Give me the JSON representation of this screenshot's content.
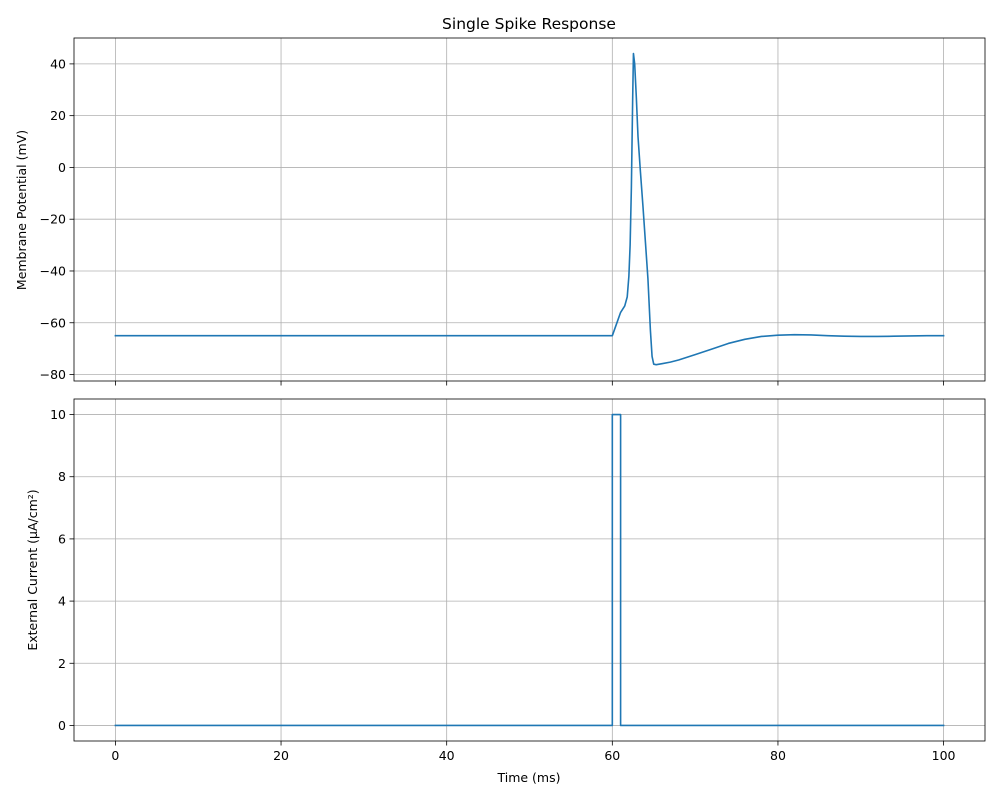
{
  "chart_data": [
    {
      "type": "line",
      "title": "Single Spike Response",
      "xlabel": "",
      "ylabel": "Membrane Potential (mV)",
      "xlim": [
        -5,
        105
      ],
      "ylim": [
        -82.5,
        50
      ],
      "xticks": [
        0,
        20,
        40,
        60,
        80,
        100
      ],
      "yticks": [
        -80,
        -60,
        -40,
        -20,
        0,
        20,
        40
      ],
      "grid": true,
      "line_color": "#1f77b4",
      "series": [
        {
          "x": [
            0,
            10,
            20,
            30,
            40,
            50,
            59,
            60,
            60.5,
            61,
            61.5,
            61.8,
            62,
            62.15,
            62.3,
            62.45,
            62.55,
            62.7,
            62.9,
            63.1,
            63.4,
            63.7,
            64.0,
            64.3,
            64.6,
            64.8,
            65.0,
            65.3,
            66,
            67,
            68,
            70,
            72,
            74,
            76,
            78,
            80,
            82,
            84,
            86,
            88,
            90,
            92,
            94,
            96,
            98,
            100
          ],
          "y": [
            -65,
            -65,
            -65,
            -65,
            -65,
            -65,
            -65,
            -65,
            -60.5,
            -56,
            -53.5,
            -50,
            -42,
            -30,
            -8,
            25,
            44,
            40,
            27,
            12,
            -2,
            -15,
            -29,
            -43,
            -63,
            -73,
            -76,
            -76.2,
            -75.8,
            -75.2,
            -74.4,
            -72.3,
            -70.2,
            -68,
            -66.4,
            -65.3,
            -64.8,
            -64.6,
            -64.7,
            -65,
            -65.2,
            -65.3,
            -65.3,
            -65.2,
            -65.1,
            -65,
            -65
          ]
        }
      ]
    },
    {
      "type": "line",
      "title": "",
      "xlabel": "Time (ms)",
      "ylabel": "External Current (µA/cm²)",
      "xlim": [
        -5,
        105
      ],
      "ylim": [
        -0.5,
        10.5
      ],
      "xticks": [
        0,
        20,
        40,
        60,
        80,
        100
      ],
      "yticks": [
        0,
        2,
        4,
        6,
        8,
        10
      ],
      "grid": true,
      "line_color": "#1f77b4",
      "series": [
        {
          "x": [
            0,
            60,
            60,
            61,
            61,
            100
          ],
          "y": [
            0,
            0,
            10,
            10,
            0,
            0
          ]
        }
      ]
    }
  ]
}
